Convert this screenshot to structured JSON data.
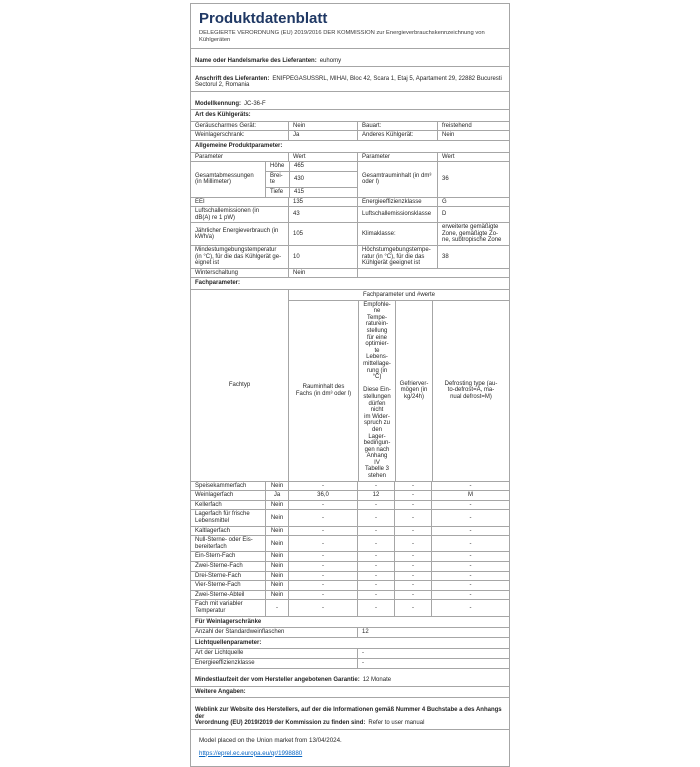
{
  "page": {
    "title": "Produktdatenblatt",
    "subtitle": "DELEGIERTE VERORDNUNG (EU) 2019/2016 DER KOMMISSION zur Energieverbrauchskennzeichnung von\nKühlgeräten"
  },
  "supplier": {
    "name_label": "Name oder Handelsmarke des Lieferanten:",
    "name_value": "euhomy",
    "address_label": "Anschrift des Lieferanten:",
    "address_value": "ENIFPEGASUSSRL, MIHAI, Bloc 42, Scara 1, Etaj 5, Apartament 29, 22882 Bucuresti\nSectorul 2, Romania",
    "model_label": "Modellkennung:",
    "model_value": "JC-36-F"
  },
  "type_section": {
    "header": "Art des Kühlgeräts:",
    "rows": [
      {
        "l1": "Geräuscharmes Gerät:",
        "v1": "Nein",
        "l2": "Bauart:",
        "v2": "freistehend"
      },
      {
        "l1": "Weinlagerschrank:",
        "v1": "Ja",
        "l2": "Anderes Kühlgerät:",
        "v2": "Nein"
      }
    ]
  },
  "general": {
    "header": "Allgemeine Produktparameter:",
    "col_headers": [
      "Parameter",
      "Wert",
      "Parameter",
      "Wert"
    ],
    "dimensions": {
      "label": "Gesamtabmessungen\n(in Millimeter)",
      "subs": [
        {
          "k": "Höhe",
          "v": "465"
        },
        {
          "k": "Brei-\nte",
          "v": "430"
        },
        {
          "k": "Tiefe",
          "v": "415"
        }
      ],
      "right_label": "Gesamtrauminhalt (in dm³\noder l)",
      "right_value": "36"
    },
    "rows": [
      {
        "l1": "EEI",
        "v1": "135",
        "l2": "Energieeffizienzklasse",
        "v2": "G"
      },
      {
        "l1": "Luftschallemissionen (in\ndB(A) re 1 pW)",
        "v1": "43",
        "l2": "Luftschallemissionsklasse",
        "v2": "D"
      },
      {
        "l1": "Jährlicher Energieverbrauch (in\nkWh/a)",
        "v1": "105",
        "l2": "Klimaklasse:",
        "v2": "erweiterte gemäßigte\nZone, gemäßigte Zo-\nne, subtropische Zone"
      },
      {
        "l1": "Mindestumgebungstemperatur\n(in °C), für die das Kühlgerät ge-\neignet ist",
        "v1": "10",
        "l2": "Höchstumgebungstempe-\nratur (in °C), für die das\nKühlgerät geeignet ist",
        "v2": "38"
      }
    ],
    "winter": {
      "label": "Winterschaltung",
      "value": "Nein"
    }
  },
  "fach": {
    "header": "Fachparameter:",
    "werte_header": "Fachparameter und #werte",
    "col_fachtyp": "Fachtyp",
    "col_rauminhalt": "Rauminhalt des\nFachs (in dm³ oder l)",
    "col_empfohlen": "Empfohle-\nne Tempe-\nraturein-\nstellung\nfür eine\noptimier-\nte Lebens-\nmittellage-\nrung (in °C)\n\nDiese Ein-\nstellungen\ndürfen nicht\nim Wider-\nspruch zu\nden Lager-\nbedingun-\ngen nach\nAnhang IV\nTabelle 3\nstehen",
    "col_gefrier": "Gefrierver-\nmögen (in\nkg/24h)",
    "col_defrost": "Defrosting type (au-\nto-defrost=A, ma-\nnual defrost=M)",
    "rows": [
      {
        "name": "Speisekammerfach",
        "present": "Nein",
        "vol": "-",
        "temp": "-",
        "freeze": "-",
        "defrost": "-"
      },
      {
        "name": "Weinlagerfach",
        "present": "Ja",
        "vol": "36,0",
        "temp": "12",
        "freeze": "-",
        "defrost": "M"
      },
      {
        "name": "Kellerfach",
        "present": "Nein",
        "vol": "-",
        "temp": "-",
        "freeze": "-",
        "defrost": "-"
      },
      {
        "name": "Lagerfach für frische\nLebensmittel",
        "present": "Nein",
        "vol": "-",
        "temp": "-",
        "freeze": "-",
        "defrost": "-"
      },
      {
        "name": "Kaltlagerfach",
        "present": "Nein",
        "vol": "-",
        "temp": "-",
        "freeze": "-",
        "defrost": "-"
      },
      {
        "name": "Null-Sterne- oder Eis-\nbereiterfach",
        "present": "Nein",
        "vol": "-",
        "temp": "-",
        "freeze": "-",
        "defrost": "-"
      },
      {
        "name": "Ein-Stern-Fach",
        "present": "Nein",
        "vol": "-",
        "temp": "-",
        "freeze": "-",
        "defrost": "-"
      },
      {
        "name": "Zwei-Sterne-Fach",
        "present": "Nein",
        "vol": "-",
        "temp": "-",
        "freeze": "-",
        "defrost": "-"
      },
      {
        "name": "Drei-Sterne-Fach",
        "present": "Nein",
        "vol": "-",
        "temp": "-",
        "freeze": "-",
        "defrost": "-"
      },
      {
        "name": "Vier-Sterne-Fach",
        "present": "Nein",
        "vol": "-",
        "temp": "-",
        "freeze": "-",
        "defrost": "-"
      },
      {
        "name": "Zwei-Sterne-Abteil",
        "present": "Nein",
        "vol": "-",
        "temp": "-",
        "freeze": "-",
        "defrost": "-"
      },
      {
        "name": "Fach mit variabler\nTemperatur",
        "present": "-",
        "vol": "-",
        "temp": "-",
        "freeze": "-",
        "defrost": "-"
      }
    ]
  },
  "wine": {
    "header": "Für Weinlagerschränke",
    "bottles_label": "Anzahl der Standardweinflaschen",
    "bottles_value": "12"
  },
  "light": {
    "header": "Lichtquellenparameter:",
    "rows": [
      {
        "label": "Art der Lichtquelle",
        "value": "-"
      },
      {
        "label": "Energieeffizienzklasse",
        "value": "-"
      }
    ]
  },
  "guarantee": {
    "label": "Mindestlaufzeit der vom Hersteller angebotenen Garantie:",
    "value": "12 Monate"
  },
  "additional": {
    "header": "Weitere Angaben:",
    "weblink_label": "Weblink zur Website des Herstellers, auf der die Informationen gemäß Nummer 4 Buchstabe a des Anhangs der\nVerordnung (EU) 2019/2019 der Kommission zu finden sind:",
    "weblink_value": "Refer to user manual"
  },
  "footer": {
    "market_text": "Model placed on the Union market from 13/04/2024.",
    "link": "https://eprel.ec.europa.eu/qr/1998880"
  },
  "colors": {
    "title": "#1f3864",
    "link": "#0563c1",
    "border": "#a6a6a6",
    "text": "#262626"
  }
}
